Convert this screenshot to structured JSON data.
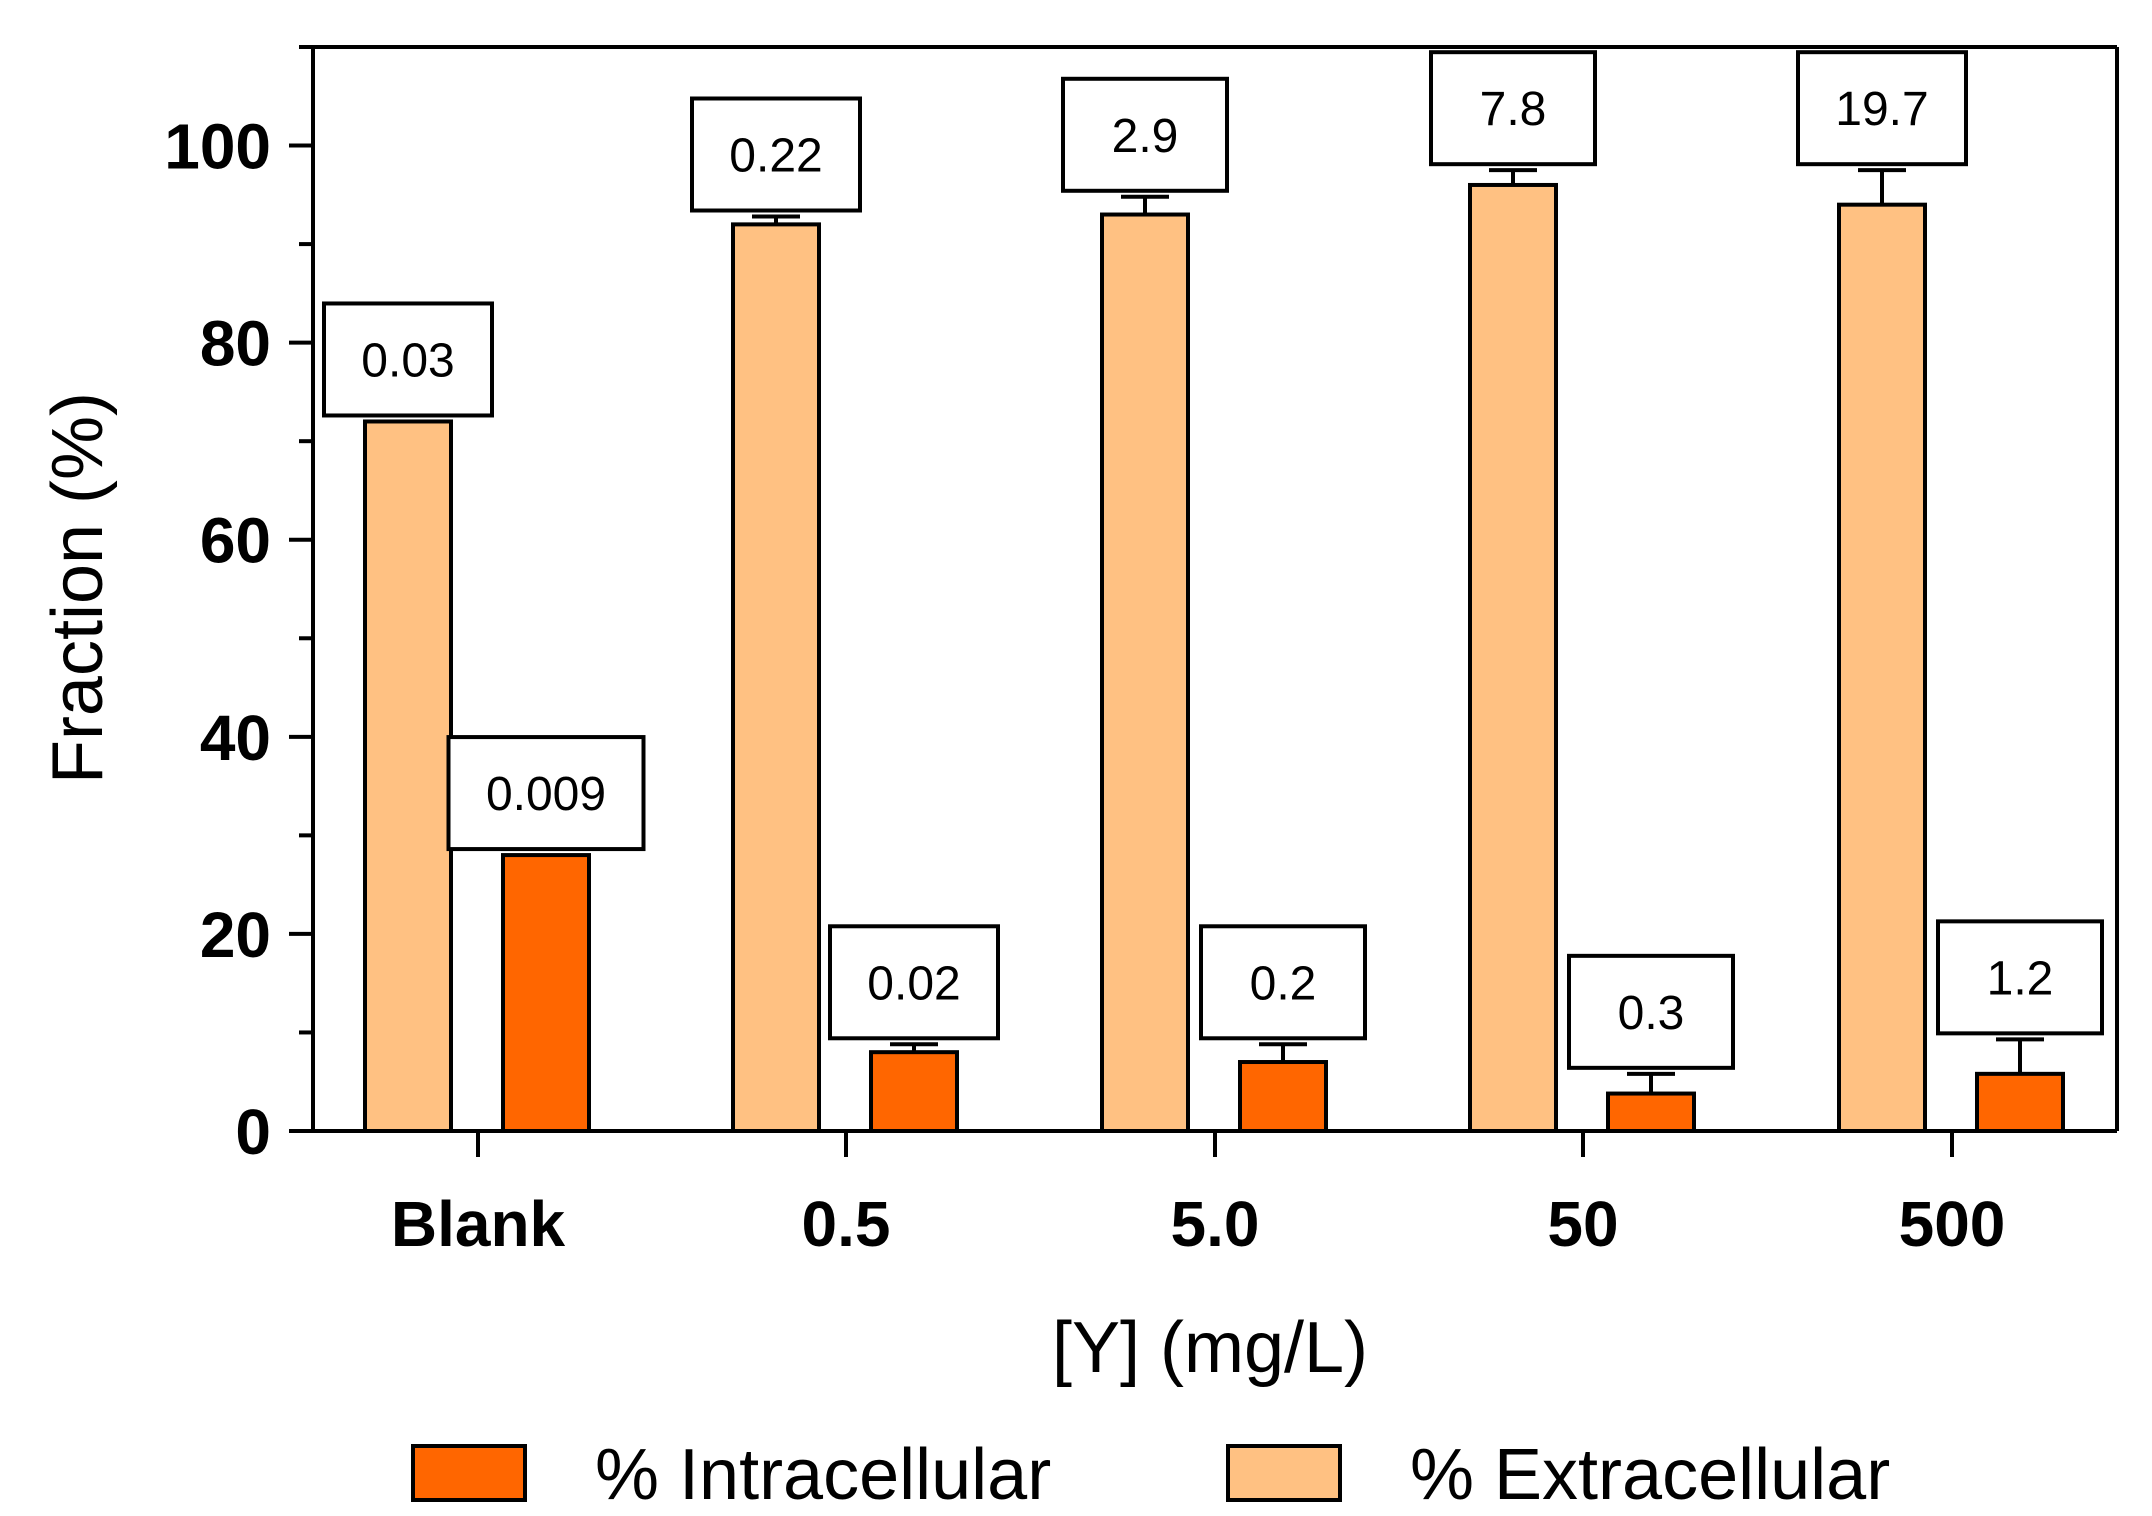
{
  "chart_data": {
    "type": "bar",
    "title": "",
    "xlabel": "[Y] (mg/L)",
    "ylabel": "Fraction (%)",
    "ylim": [
      0,
      110
    ],
    "yticks": [
      0,
      20,
      40,
      60,
      80,
      100
    ],
    "categories": [
      "Blank",
      "0.5",
      "5.0",
      "50",
      "500"
    ],
    "series": [
      {
        "name": "% Extracellular",
        "color": "#FFC182",
        "values": [
          72,
          92,
          93,
          96,
          94
        ],
        "errors": [
          0,
          0.8,
          1.8,
          1.5,
          3.5
        ],
        "labels": [
          "0.03",
          "0.22",
          "2.9",
          "7.8",
          "19.7"
        ]
      },
      {
        "name": "% Intracellular",
        "color": "#FF6600",
        "values": [
          28,
          8,
          7,
          3.8,
          5.8
        ],
        "errors": [
          0,
          0.8,
          1.8,
          2,
          3.5
        ],
        "labels": [
          "0.009",
          "0.02",
          "0.2",
          "0.3",
          "1.2"
        ]
      }
    ],
    "legend": {
      "position": "bottom",
      "entries": [
        "% Intracellular",
        "% Extracellular"
      ]
    },
    "grid": false
  }
}
